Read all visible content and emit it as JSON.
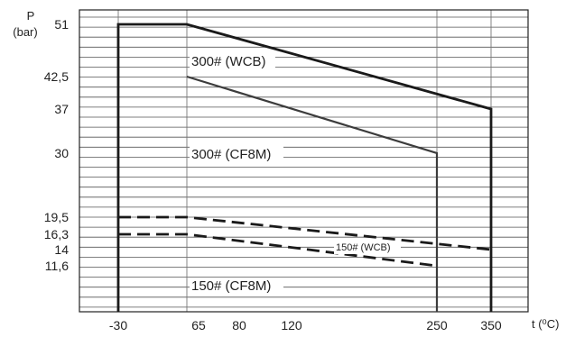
{
  "chart_data": {
    "type": "line",
    "ylabel": "P",
    "yunit": "(bar)",
    "xlabel": "t (⁰C)",
    "xlim": [
      -48,
      380
    ],
    "ylim": [
      0,
      54
    ],
    "grid": true,
    "x_ticks": [
      "-30",
      "65",
      "80",
      "120",
      "250",
      "350"
    ],
    "x_tick_values": [
      -30,
      65,
      80,
      120,
      250,
      350
    ],
    "y_ticks": [
      "51",
      "42,5",
      "37",
      "30",
      "19,5",
      "16,3",
      "14",
      "11,6"
    ],
    "y_tick_values": [
      51,
      42.5,
      37,
      30,
      19.5,
      16.3,
      14,
      11.6
    ],
    "series": [
      {
        "name": "300# (WCB)",
        "style": "solid",
        "stroke_width": "heavy",
        "color": "#1a1a1a",
        "x": [
          -30,
          -30,
          34,
          350,
          350
        ],
        "y": [
          0,
          51,
          51,
          37,
          0
        ]
      },
      {
        "name": "300# (CF8M)",
        "style": "solid",
        "stroke_width": "medium",
        "color": "#3c3c3c",
        "x": [
          34,
          250,
          250
        ],
        "y": [
          42.5,
          30,
          0
        ]
      },
      {
        "name": "150# (WCB)",
        "style": "dashed",
        "stroke_width": "heavy",
        "color": "#1a1a1a",
        "x": [
          -30,
          34,
          350
        ],
        "y": [
          19.5,
          19.5,
          14
        ]
      },
      {
        "name": "150# (CF8M)",
        "style": "dashed",
        "stroke_width": "heavy",
        "color": "#1a1a1a",
        "x": [
          -30,
          34,
          250
        ],
        "y": [
          16.3,
          16.3,
          11.6
        ]
      }
    ],
    "annotations": [
      {
        "text": "300# (WCB)",
        "series": 0
      },
      {
        "text": "300# (CF8M)",
        "series": 1
      },
      {
        "text": "150# (WCB)",
        "series": 2
      },
      {
        "text": "150# (CF8M)",
        "series": 3
      }
    ]
  }
}
